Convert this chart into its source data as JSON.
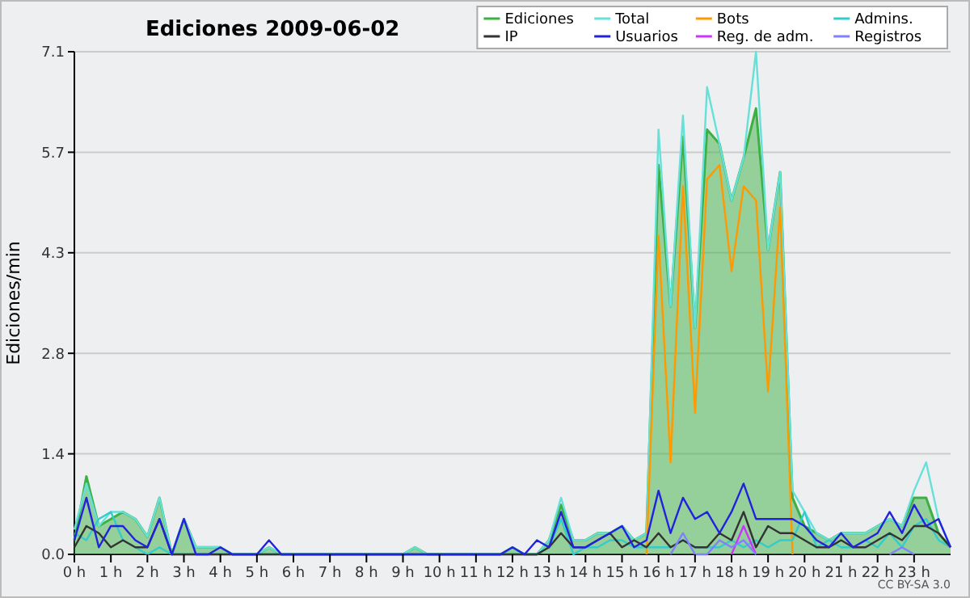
{
  "chart_data": {
    "type": "line",
    "title": "Ediciones  2009-06-02",
    "ylabel": "Ediciones/min",
    "annotations": [
      "CC BY-SA 3.0"
    ],
    "x": [
      0,
      0.33,
      0.67,
      1,
      1.33,
      1.67,
      2,
      2.33,
      2.67,
      3,
      3.33,
      3.67,
      4,
      4.33,
      4.67,
      5,
      5.33,
      5.67,
      6,
      6.33,
      6.67,
      7,
      7.33,
      7.67,
      8,
      8.33,
      8.67,
      9,
      9.33,
      9.67,
      10,
      10.33,
      10.67,
      11,
      11.33,
      11.67,
      12,
      12.33,
      12.67,
      13,
      13.33,
      13.67,
      14,
      14.33,
      14.67,
      15,
      15.33,
      15.67,
      16,
      16.33,
      16.67,
      17,
      17.33,
      17.67,
      18,
      18.33,
      18.67,
      19,
      19.33,
      19.67,
      20,
      20.33,
      20.67,
      21,
      21.33,
      21.67,
      22,
      22.33,
      22.67,
      23,
      23.33,
      23.67,
      24
    ],
    "xlim": [
      0,
      24
    ],
    "xticks": [
      {
        "value": 0,
        "label": "0 h"
      },
      {
        "value": 1,
        "label": "1 h"
      },
      {
        "value": 2,
        "label": "2 h"
      },
      {
        "value": 3,
        "label": "3 h"
      },
      {
        "value": 4,
        "label": "4 h"
      },
      {
        "value": 5,
        "label": "5 h"
      },
      {
        "value": 6,
        "label": "6 h"
      },
      {
        "value": 7,
        "label": "7 h"
      },
      {
        "value": 8,
        "label": "8 h"
      },
      {
        "value": 9,
        "label": "9 h"
      },
      {
        "value": 10,
        "label": "10 h"
      },
      {
        "value": 11,
        "label": "11 h"
      },
      {
        "value": 12,
        "label": "12 h"
      },
      {
        "value": 13,
        "label": "13 h"
      },
      {
        "value": 14,
        "label": "14 h"
      },
      {
        "value": 15,
        "label": "15 h"
      },
      {
        "value": 16,
        "label": "16 h"
      },
      {
        "value": 17,
        "label": "17 h"
      },
      {
        "value": 18,
        "label": "18 h"
      },
      {
        "value": 19,
        "label": "19 h"
      },
      {
        "value": 20,
        "label": "20 h"
      },
      {
        "value": 21,
        "label": "21 h"
      },
      {
        "value": 22,
        "label": "22 h"
      },
      {
        "value": 23,
        "label": "23 h"
      }
    ],
    "ylim": [
      0,
      7.1
    ],
    "yticks": [
      {
        "value": 0,
        "label": "0.0"
      },
      {
        "value": 1.42,
        "label": "1.4"
      },
      {
        "value": 2.84,
        "label": "2.8"
      },
      {
        "value": 4.26,
        "label": "4.3"
      },
      {
        "value": 5.68,
        "label": "5.7"
      },
      {
        "value": 7.1,
        "label": "7.1"
      }
    ],
    "grid": "y",
    "legend": "top right",
    "marker": "none",
    "line_style": "solid",
    "series": [
      {
        "name": "Ediciones",
        "type": "area",
        "color": "#3cb043",
        "values": [
          0.2,
          1.1,
          0.4,
          0.5,
          0.6,
          0.5,
          0.25,
          0.8,
          0,
          0.5,
          0.1,
          0.1,
          0.1,
          0,
          0,
          0,
          0.1,
          0,
          0,
          0,
          0,
          0,
          0,
          0,
          0,
          0,
          0,
          0,
          0.1,
          0,
          0,
          0,
          0,
          0,
          0,
          0,
          0.1,
          0,
          0,
          0.2,
          0.7,
          0.2,
          0.2,
          0.3,
          0.3,
          0.4,
          0.2,
          0.3,
          5.5,
          3.5,
          5.9,
          3.2,
          6.0,
          5.8,
          5.0,
          5.6,
          6.3,
          4.3,
          5.4,
          0.8,
          0.4,
          0.3,
          0.2,
          0.3,
          0.3,
          0.3,
          0.4,
          0.5,
          0.4,
          0.8,
          0.8,
          0.3,
          0.1
        ]
      },
      {
        "name": "Total",
        "color": "#66e0d8",
        "values": [
          0.35,
          1.0,
          0.4,
          0.6,
          0.6,
          0.5,
          0.25,
          0.8,
          0,
          0.5,
          0.1,
          0.1,
          0.1,
          0,
          0,
          0,
          0.1,
          0,
          0,
          0,
          0,
          0,
          0,
          0,
          0,
          0,
          0,
          0,
          0.1,
          0,
          0,
          0,
          0,
          0,
          0,
          0,
          0.1,
          0,
          0,
          0.2,
          0.8,
          0.2,
          0.2,
          0.3,
          0.3,
          0.4,
          0.2,
          0.3,
          6.0,
          3.5,
          6.2,
          3.2,
          6.6,
          5.8,
          5.0,
          5.6,
          7.1,
          4.3,
          5.4,
          0.9,
          0.6,
          0.3,
          0.2,
          0.3,
          0.3,
          0.3,
          0.4,
          0.5,
          0.4,
          0.9,
          1.3,
          0.5,
          0.1
        ]
      },
      {
        "name": "Bots",
        "color": "#ff9900",
        "values": [
          null,
          null,
          null,
          null,
          null,
          null,
          null,
          null,
          null,
          null,
          null,
          null,
          null,
          null,
          null,
          null,
          null,
          null,
          null,
          null,
          null,
          null,
          null,
          null,
          null,
          null,
          null,
          null,
          null,
          null,
          null,
          null,
          null,
          null,
          null,
          null,
          null,
          null,
          null,
          null,
          null,
          null,
          null,
          null,
          null,
          null,
          null,
          0,
          4.5,
          1.3,
          5.2,
          2.0,
          5.3,
          5.5,
          4.0,
          5.2,
          5.0,
          2.3,
          4.9,
          0,
          null,
          null,
          null,
          null,
          null,
          null,
          null,
          null,
          null,
          null,
          null,
          null,
          null
        ]
      },
      {
        "name": "Admins.",
        "color": "#33cccc",
        "values": [
          0.3,
          0.2,
          0.5,
          0.6,
          0.2,
          0.1,
          0,
          0.1,
          0,
          0,
          0,
          0,
          0,
          0,
          0,
          0,
          0,
          0,
          0,
          0,
          0,
          0,
          0,
          0,
          0,
          0,
          0,
          0,
          0,
          0,
          0,
          0,
          0,
          0,
          0,
          0,
          0,
          0,
          0,
          0.1,
          0.5,
          0,
          0.1,
          0.1,
          0.2,
          0.2,
          0.1,
          0.1,
          0.1,
          0.1,
          0.2,
          0.1,
          0.1,
          0.1,
          0.2,
          0.1,
          0.2,
          0.1,
          0.2,
          0.2,
          0.6,
          0.1,
          0.2,
          0.1,
          0.1,
          0.2,
          0.1,
          0.3,
          0.1,
          0.4,
          0.5,
          0.2,
          0.1
        ]
      },
      {
        "name": "IP",
        "color": "#333333",
        "values": [
          0.1,
          0.4,
          0.3,
          0.1,
          0.2,
          0.1,
          0.1,
          0.5,
          0,
          0,
          0,
          0,
          0,
          0,
          0,
          0,
          0,
          0,
          0,
          0,
          0,
          0,
          0,
          0,
          0,
          0,
          0,
          0,
          0,
          0,
          0,
          0,
          0,
          0,
          0,
          0,
          0,
          0,
          0,
          0.1,
          0.3,
          0.1,
          0.1,
          0.2,
          0.3,
          0.1,
          0.2,
          0.1,
          0.3,
          0.1,
          0.2,
          0.1,
          0.1,
          0.3,
          0.2,
          0.6,
          0.1,
          0.4,
          0.3,
          0.3,
          0.2,
          0.1,
          0.1,
          0.2,
          0.1,
          0.1,
          0.2,
          0.3,
          0.2,
          0.4,
          0.4,
          0.3,
          0.1
        ]
      },
      {
        "name": "Usuarios",
        "color": "#2222dd",
        "values": [
          0.2,
          0.8,
          0.1,
          0.4,
          0.4,
          0.2,
          0.1,
          0.5,
          0,
          0.5,
          0,
          0,
          0.1,
          0,
          0,
          0,
          0.2,
          0,
          0,
          0,
          0,
          0,
          0,
          0,
          0,
          0,
          0,
          0,
          0,
          0,
          0,
          0,
          0,
          0,
          0,
          0,
          0.1,
          0,
          0.2,
          0.1,
          0.6,
          0.1,
          0.1,
          0.2,
          0.3,
          0.4,
          0.1,
          0.2,
          0.9,
          0.3,
          0.8,
          0.5,
          0.6,
          0.3,
          0.6,
          1.0,
          0.5,
          0.5,
          0.5,
          0.5,
          0.4,
          0.2,
          0.1,
          0.3,
          0.1,
          0.2,
          0.3,
          0.6,
          0.3,
          0.7,
          0.4,
          0.5,
          0.1
        ]
      },
      {
        "name": "Reg. de adm.",
        "color": "#cc33ff",
        "values": [
          null,
          null,
          null,
          null,
          null,
          null,
          null,
          null,
          null,
          null,
          null,
          null,
          null,
          null,
          null,
          null,
          null,
          null,
          null,
          null,
          null,
          null,
          null,
          null,
          null,
          null,
          null,
          null,
          null,
          null,
          null,
          null,
          null,
          null,
          null,
          null,
          null,
          null,
          null,
          null,
          null,
          null,
          null,
          null,
          null,
          null,
          null,
          null,
          null,
          null,
          null,
          null,
          null,
          null,
          0,
          0.4,
          0,
          null,
          null,
          null,
          null,
          null,
          null,
          null,
          null,
          null,
          null,
          null,
          null,
          null,
          null,
          null,
          null
        ]
      },
      {
        "name": "Registros",
        "color": "#8080ff",
        "values": [
          null,
          null,
          null,
          null,
          null,
          null,
          null,
          null,
          null,
          null,
          null,
          null,
          null,
          null,
          null,
          null,
          null,
          null,
          null,
          null,
          null,
          null,
          null,
          null,
          null,
          null,
          null,
          null,
          null,
          null,
          null,
          null,
          null,
          null,
          null,
          null,
          null,
          null,
          null,
          null,
          null,
          null,
          null,
          null,
          null,
          null,
          null,
          null,
          null,
          0,
          0.3,
          0,
          0,
          0.2,
          0.1,
          0.2,
          0,
          null,
          null,
          null,
          null,
          null,
          null,
          null,
          null,
          null,
          null,
          0,
          0.1,
          0,
          null,
          null,
          null
        ]
      }
    ]
  }
}
